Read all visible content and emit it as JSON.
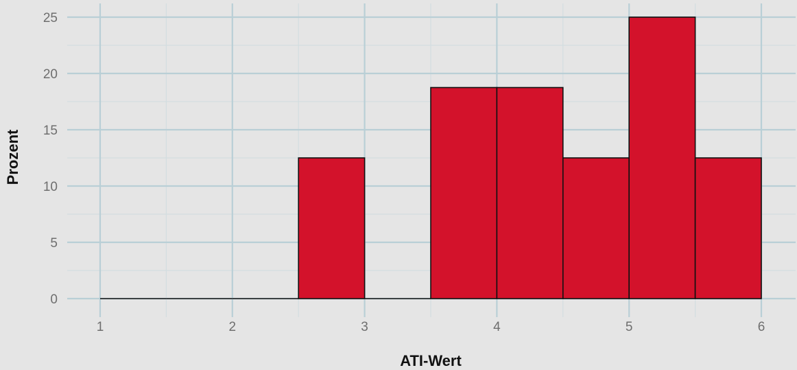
{
  "chart_data": {
    "type": "bar",
    "xlabel": "ATI-Wert",
    "ylabel": "Prozent",
    "xlim": [
      1,
      6
    ],
    "ylim": [
      0,
      25
    ],
    "x_ticks": [
      "1",
      "2",
      "3",
      "4",
      "5",
      "6"
    ],
    "y_ticks": [
      "0",
      "5",
      "10",
      "15",
      "20",
      "25"
    ],
    "bin_width": 0.5,
    "bins": [
      {
        "start": 1.0,
        "end": 1.5,
        "value": 0
      },
      {
        "start": 1.5,
        "end": 2.0,
        "value": 0
      },
      {
        "start": 2.0,
        "end": 2.5,
        "value": 0
      },
      {
        "start": 2.5,
        "end": 3.0,
        "value": 12.5
      },
      {
        "start": 3.0,
        "end": 3.5,
        "value": 0
      },
      {
        "start": 3.5,
        "end": 4.0,
        "value": 18.75
      },
      {
        "start": 4.0,
        "end": 4.5,
        "value": 18.75
      },
      {
        "start": 4.5,
        "end": 5.0,
        "value": 12.5
      },
      {
        "start": 5.0,
        "end": 5.5,
        "value": 25
      },
      {
        "start": 5.5,
        "end": 6.0,
        "value": 12.5
      }
    ],
    "grid": true,
    "legend": "none",
    "colors": {
      "bar_fill": "#d3122b",
      "bar_stroke": "#111111",
      "background": "#e5e5e5",
      "grid_major": "#b9cfd6",
      "grid_minor": "#d3dde0"
    }
  }
}
